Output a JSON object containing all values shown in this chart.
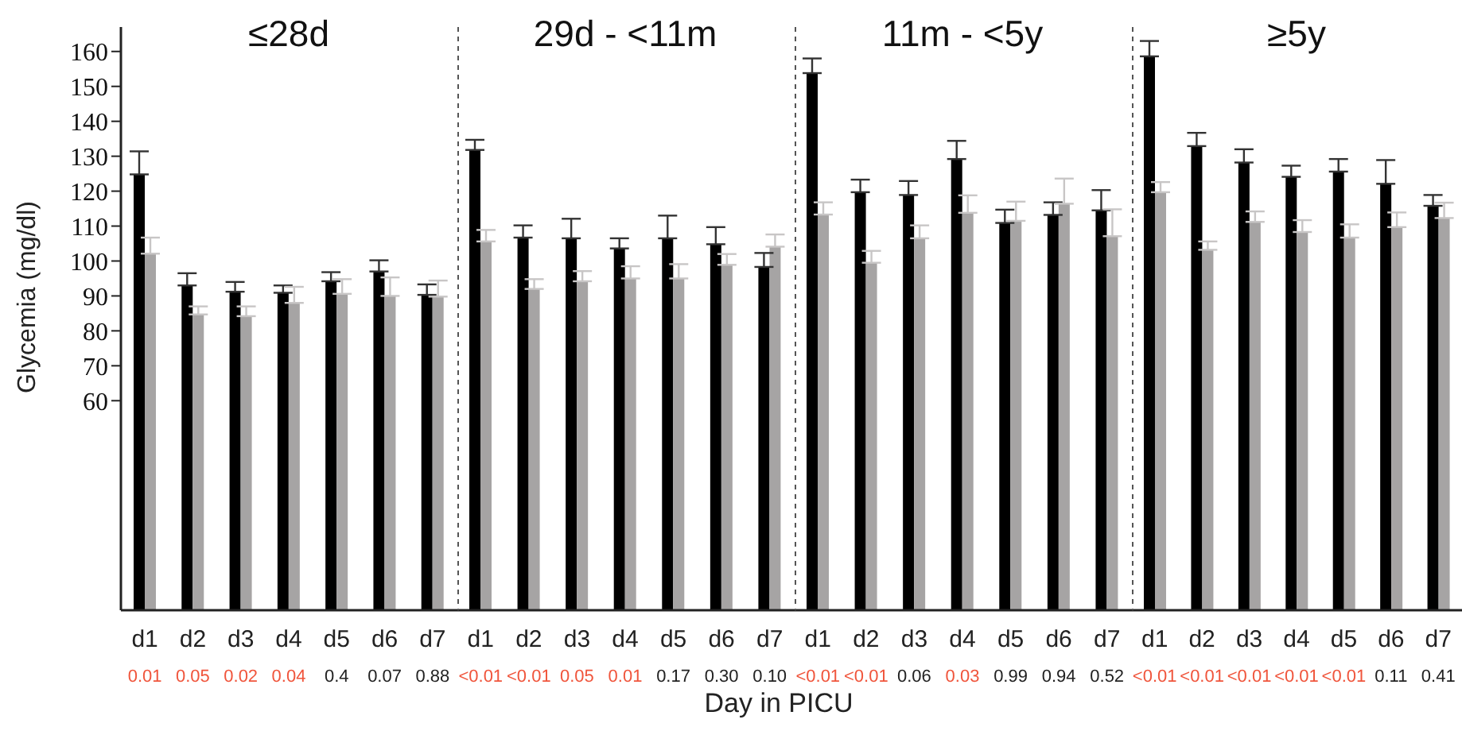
{
  "chart_data": [
    {
      "type": "bar",
      "title": "≤28d",
      "ylabel": "Glycemia (mg/dl)",
      "categories": [
        "d1",
        "d2",
        "d3",
        "d4",
        "d5",
        "d6",
        "d7"
      ],
      "ylim": [
        0,
        167
      ],
      "yticks": [
        60,
        70,
        80,
        90,
        100,
        110,
        120,
        130,
        140,
        150,
        160
      ],
      "grid": false,
      "legend": false,
      "series": [
        {
          "color": "#000000",
          "values": [
            124.8,
            93,
            91.2,
            90.9,
            94.2,
            97,
            90.3
          ],
          "errors": [
            [
              124.8,
              131.4
            ],
            [
              93,
              96.5
            ],
            [
              91.2,
              94
            ],
            [
              90.9,
              93
            ],
            [
              94.2,
              96.8
            ],
            [
              97,
              100.2
            ],
            [
              90.3,
              93.3
            ]
          ]
        },
        {
          "color": "#a6a4a4",
          "values": [
            102.1,
            84.7,
            84.2,
            88,
            90.6,
            90,
            89.8
          ],
          "errors": [
            [
              102.1,
              106.7
            ],
            [
              84.7,
              87
            ],
            [
              84.2,
              87
            ],
            [
              88,
              92.6
            ],
            [
              90.6,
              94.8
            ],
            [
              90,
              95.3
            ],
            [
              89.8,
              94.4
            ]
          ]
        }
      ],
      "annotations": [
        "0.01",
        "0.05",
        "0.02",
        "0.04",
        "0.4",
        "0.07",
        "0.88"
      ]
    },
    {
      "type": "bar",
      "title": "29d - <11m",
      "xlabel": "Day in PICU",
      "categories": [
        "d1",
        "d2",
        "d3",
        "d4",
        "d5",
        "d6",
        "d7"
      ],
      "ylim": [
        0,
        167
      ],
      "yticks": [
        60,
        70,
        80,
        90,
        100,
        110,
        120,
        130,
        140,
        150,
        160
      ],
      "tick_labels": "x",
      "grid": false,
      "legend": false,
      "series": [
        {
          "color": "#000000",
          "values": [
            131.8,
            106.7,
            106.5,
            103.6,
            106.5,
            104.8,
            98.3
          ],
          "errors": [
            [
              131.8,
              134.7
            ],
            [
              106.7,
              110.2
            ],
            [
              106.5,
              112.1
            ],
            [
              103.6,
              106.5
            ],
            [
              106.5,
              113
            ],
            [
              104.8,
              109.7
            ],
            [
              98.3,
              102.3
            ]
          ]
        },
        {
          "color": "#a6a4a4",
          "values": [
            105.6,
            92,
            94.2,
            95,
            95,
            98.9,
            104.1
          ],
          "errors": [
            [
              105.6,
              108.9
            ],
            [
              92,
              94.8
            ],
            [
              94.2,
              97.1
            ],
            [
              95,
              98.5
            ],
            [
              95,
              99.1
            ],
            [
              98.9,
              102
            ],
            [
              104.1,
              107.6
            ]
          ]
        }
      ],
      "annotations": [
        "<0.01",
        "<0.01",
        "0.05",
        "0.01",
        "0.17",
        "0.30",
        "0.10"
      ]
    },
    {
      "type": "bar",
      "title": "11m - <5y",
      "categories": [
        "d1",
        "d2",
        "d3",
        "d4",
        "d5",
        "d6",
        "d7"
      ],
      "ylim": [
        0,
        167
      ],
      "yticks": [
        60,
        70,
        80,
        90,
        100,
        110,
        120,
        130,
        140,
        150,
        160
      ],
      "tick_labels": "x",
      "grid": false,
      "legend": false,
      "series": [
        {
          "color": "#000000",
          "values": [
            153.8,
            119.7,
            118.9,
            129.2,
            110.9,
            113.2,
            114.5
          ],
          "errors": [
            [
              153.8,
              158
            ],
            [
              119.7,
              123.3
            ],
            [
              118.9,
              122.9
            ],
            [
              129.2,
              134.4
            ],
            [
              110.9,
              114.7
            ],
            [
              113.2,
              116.8
            ],
            [
              114.5,
              120.3
            ]
          ]
        },
        {
          "color": "#a6a4a4",
          "values": [
            113.3,
            99.5,
            106.5,
            113.8,
            111.5,
            116.4,
            107.1
          ],
          "errors": [
            [
              113.3,
              116.8
            ],
            [
              99.5,
              102.9
            ],
            [
              106.5,
              110.2
            ],
            [
              113.8,
              118.8
            ],
            [
              111.5,
              117
            ],
            [
              116.4,
              123.6
            ],
            [
              107.1,
              114.8
            ]
          ]
        }
      ],
      "annotations": [
        "<0.01",
        "<0.01",
        "0.06",
        "0.03",
        "0.99",
        "0.94",
        "0.52"
      ]
    },
    {
      "type": "bar",
      "title": "≥5y",
      "categories": [
        "d1",
        "d2",
        "d3",
        "d4",
        "d5",
        "d6",
        "d7"
      ],
      "ylim": [
        0,
        167
      ],
      "yticks": [
        60,
        70,
        80,
        90,
        100,
        110,
        120,
        130,
        140,
        150,
        160
      ],
      "tick_labels": "x",
      "grid": false,
      "legend": false,
      "series": [
        {
          "color": "#000000",
          "values": [
            158.6,
            132.9,
            128.2,
            124.1,
            125.6,
            122.1,
            115.8
          ],
          "errors": [
            [
              158.6,
              163
            ],
            [
              132.9,
              136.7
            ],
            [
              128.2,
              132
            ],
            [
              124.1,
              127.3
            ],
            [
              125.6,
              129.2
            ],
            [
              122.1,
              128.9
            ],
            [
              115.8,
              118.9
            ]
          ]
        },
        {
          "color": "#a6a4a4",
          "values": [
            119.7,
            103.2,
            111.2,
            108.3,
            106.7,
            109.7,
            112.3
          ],
          "errors": [
            [
              119.7,
              122.6
            ],
            [
              103.2,
              105.6
            ],
            [
              111.2,
              114.2
            ],
            [
              108.3,
              111.7
            ],
            [
              106.7,
              110.5
            ],
            [
              109.7,
              113.9
            ],
            [
              112.3,
              116.7
            ]
          ]
        }
      ],
      "annotations": [
        "<0.01",
        "<0.01",
        "<0.01",
        "<0.01",
        "<0.01",
        "0.11",
        "0.41"
      ]
    }
  ]
}
